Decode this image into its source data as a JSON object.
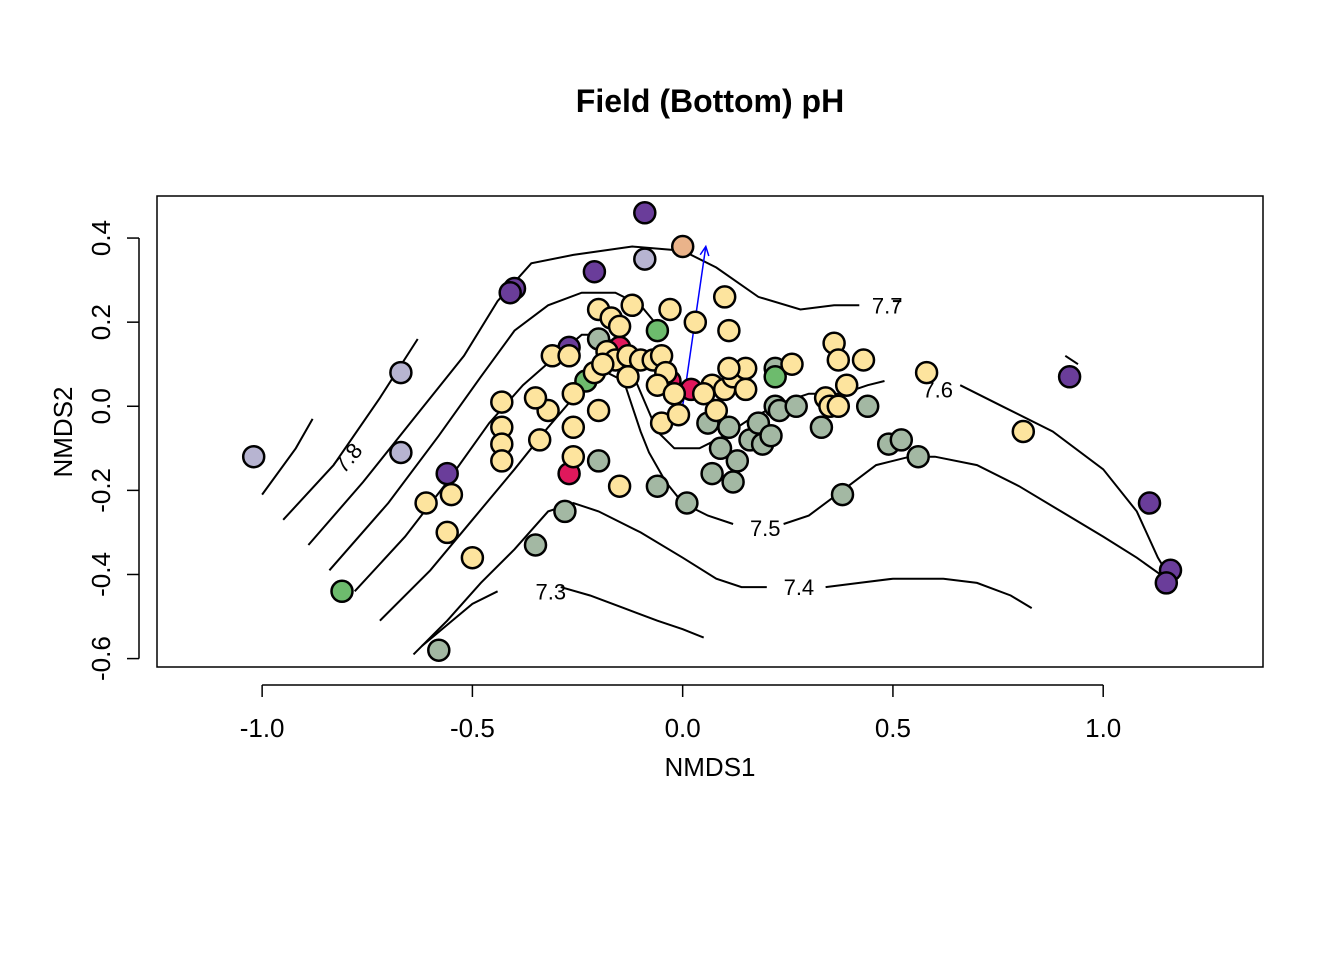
{
  "chart_data": {
    "type": "scatter",
    "title": "Field (Bottom) pH",
    "xlabel": "NMDS1",
    "ylabel": "NMDS2",
    "xlim": [
      -1.25,
      1.38
    ],
    "ylim": [
      -0.62,
      0.5
    ],
    "x_ticks": [
      "-1.0",
      "-0.5",
      "0.0",
      "0.5",
      "1.0"
    ],
    "x_tick_values": [
      -1.0,
      -0.5,
      0.0,
      0.5,
      1.0
    ],
    "y_ticks": [
      "-0.6",
      "-0.4",
      "-0.2",
      "0.0",
      "0.2",
      "0.4"
    ],
    "y_tick_values": [
      -0.6,
      -0.4,
      -0.2,
      0.0,
      0.2,
      0.4
    ],
    "grid": false,
    "colors": {
      "purple": "#6a3d9a",
      "lavender": "#b7b4d1",
      "yellow": "#fde49e",
      "sage": "#a3b8a3",
      "green": "#6dbb6d",
      "magenta": "#e0185c",
      "peach": "#eab38a"
    },
    "vector_arrow": {
      "x0": 0.0,
      "y0": 0.0,
      "x1": 0.055,
      "y1": 0.38,
      "color": "#0000ff"
    },
    "contours": [
      {
        "label": "7.8",
        "label_at": [
          -0.82,
          -0.15
        ],
        "points": [
          [
            -1.0,
            -0.21
          ],
          [
            -0.92,
            -0.1
          ],
          [
            -0.88,
            -0.03
          ]
        ]
      },
      {
        "label": "",
        "label_at": null,
        "points": [
          [
            -0.95,
            -0.27
          ],
          [
            -0.83,
            -0.14
          ],
          [
            -0.72,
            0.02
          ],
          [
            -0.63,
            0.16
          ]
        ]
      },
      {
        "label": "",
        "label_at": null,
        "points": [
          [
            -0.89,
            -0.33
          ],
          [
            -0.76,
            -0.18
          ],
          [
            -0.64,
            -0.03
          ],
          [
            -0.52,
            0.12
          ],
          [
            -0.44,
            0.25
          ],
          [
            -0.36,
            0.34
          ],
          [
            -0.26,
            0.36
          ],
          [
            -0.12,
            0.38
          ],
          [
            0.0,
            0.37
          ],
          [
            0.08,
            0.33
          ],
          [
            0.18,
            0.26
          ],
          [
            0.28,
            0.23
          ],
          [
            0.36,
            0.24
          ],
          [
            0.42,
            0.24
          ]
        ]
      },
      {
        "label": "7.7",
        "label_at": [
          0.45,
          0.24
        ],
        "points": [
          [
            0.5,
            0.25
          ],
          [
            0.52,
            0.25
          ]
        ]
      },
      {
        "label": "",
        "label_at": null,
        "points": [
          [
            -0.84,
            -0.39
          ],
          [
            -0.7,
            -0.23
          ],
          [
            -0.58,
            -0.07
          ],
          [
            -0.48,
            0.07
          ],
          [
            -0.4,
            0.18
          ],
          [
            -0.32,
            0.24
          ],
          [
            -0.24,
            0.27
          ],
          [
            -0.16,
            0.27
          ],
          [
            -0.1,
            0.24
          ],
          [
            -0.05,
            0.18
          ]
        ]
      },
      {
        "label": "",
        "label_at": null,
        "points": [
          [
            -0.78,
            -0.44
          ],
          [
            -0.66,
            -0.31
          ],
          [
            -0.56,
            -0.18
          ],
          [
            -0.46,
            -0.04
          ],
          [
            -0.38,
            0.05
          ],
          [
            -0.3,
            0.12
          ],
          [
            -0.24,
            0.17
          ],
          [
            -0.19,
            0.17
          ],
          [
            -0.15,
            0.14
          ],
          [
            -0.12,
            0.08
          ],
          [
            -0.09,
            0.01
          ],
          [
            -0.06,
            -0.06
          ],
          [
            -0.02,
            -0.1
          ],
          [
            0.04,
            -0.1
          ],
          [
            0.1,
            -0.07
          ],
          [
            0.16,
            -0.03
          ],
          [
            0.24,
            0.01
          ],
          [
            0.3,
            0.03
          ],
          [
            0.38,
            0.03
          ],
          [
            0.44,
            0.05
          ],
          [
            0.48,
            0.06
          ]
        ]
      },
      {
        "label": "7.6",
        "label_at": [
          0.57,
          0.04
        ],
        "points": [
          [
            0.66,
            0.05
          ],
          [
            0.76,
            0.0
          ],
          [
            0.88,
            -0.06
          ],
          [
            1.0,
            -0.15
          ],
          [
            1.08,
            -0.25
          ],
          [
            1.13,
            -0.36
          ],
          [
            1.16,
            -0.41
          ]
        ]
      },
      {
        "label": "",
        "label_at": null,
        "points": [
          [
            -0.72,
            -0.51
          ],
          [
            -0.6,
            -0.39
          ],
          [
            -0.5,
            -0.27
          ],
          [
            -0.4,
            -0.15
          ],
          [
            -0.32,
            -0.05
          ],
          [
            -0.26,
            0.02
          ],
          [
            -0.22,
            0.07
          ],
          [
            -0.18,
            0.08
          ],
          [
            -0.14,
            0.06
          ],
          [
            -0.12,
            0.0
          ],
          [
            -0.1,
            -0.06
          ],
          [
            -0.08,
            -0.11
          ],
          [
            -0.04,
            -0.18
          ],
          [
            0.0,
            -0.23
          ],
          [
            0.06,
            -0.26
          ],
          [
            0.12,
            -0.28
          ]
        ]
      },
      {
        "label": "7.5",
        "label_at": [
          0.16,
          -0.29
        ],
        "points": [
          [
            0.24,
            -0.28
          ],
          [
            0.3,
            -0.26
          ],
          [
            0.38,
            -0.2
          ],
          [
            0.46,
            -0.14
          ],
          [
            0.54,
            -0.12
          ],
          [
            0.6,
            -0.12
          ],
          [
            0.7,
            -0.14
          ],
          [
            0.8,
            -0.19
          ],
          [
            0.9,
            -0.25
          ],
          [
            1.0,
            -0.31
          ],
          [
            1.08,
            -0.36
          ],
          [
            1.15,
            -0.41
          ]
        ]
      },
      {
        "label": "",
        "label_at": null,
        "points": [
          [
            -0.64,
            -0.59
          ],
          [
            -0.56,
            -0.51
          ],
          [
            -0.48,
            -0.42
          ],
          [
            -0.4,
            -0.34
          ],
          [
            -0.32,
            -0.25
          ],
          [
            -0.26,
            -0.23
          ],
          [
            -0.2,
            -0.25
          ],
          [
            -0.1,
            -0.3
          ],
          [
            0.0,
            -0.36
          ],
          [
            0.08,
            -0.41
          ],
          [
            0.14,
            -0.43
          ],
          [
            0.2,
            -0.43
          ]
        ]
      },
      {
        "label": "7.4",
        "label_at": [
          0.24,
          -0.43
        ],
        "points": [
          [
            0.34,
            -0.43
          ],
          [
            0.42,
            -0.42
          ],
          [
            0.5,
            -0.41
          ],
          [
            0.56,
            -0.41
          ],
          [
            0.62,
            -0.41
          ],
          [
            0.7,
            -0.42
          ],
          [
            0.78,
            -0.45
          ],
          [
            0.83,
            -0.48
          ]
        ]
      },
      {
        "label": "",
        "label_at": null,
        "points": [
          [
            -0.62,
            -0.57
          ],
          [
            -0.56,
            -0.52
          ],
          [
            -0.5,
            -0.47
          ],
          [
            -0.44,
            -0.44
          ]
        ]
      },
      {
        "label": "7.3",
        "label_at": [
          -0.35,
          -0.44
        ],
        "points": [
          [
            -0.29,
            -0.43
          ],
          [
            -0.22,
            -0.45
          ],
          [
            -0.14,
            -0.48
          ],
          [
            -0.06,
            -0.51
          ],
          [
            0.0,
            -0.53
          ],
          [
            0.05,
            -0.55
          ]
        ]
      },
      {
        "label": "",
        "label_at": null,
        "points": [
          [
            0.91,
            0.12
          ],
          [
            0.94,
            0.1
          ]
        ]
      }
    ],
    "series": [
      {
        "color_key": "purple",
        "points": [
          [
            -0.09,
            0.46
          ],
          [
            -0.21,
            0.32
          ],
          [
            -0.4,
            0.28
          ],
          [
            -0.41,
            0.27
          ],
          [
            -0.27,
            0.14
          ],
          [
            -0.56,
            -0.16
          ],
          [
            0.92,
            0.07
          ],
          [
            1.11,
            -0.23
          ],
          [
            1.16,
            -0.39
          ],
          [
            1.15,
            -0.42
          ]
        ]
      },
      {
        "color_key": "lavender",
        "points": [
          [
            -0.09,
            0.35
          ],
          [
            -0.67,
            0.08
          ],
          [
            -0.67,
            -0.11
          ],
          [
            -1.02,
            -0.12
          ]
        ]
      },
      {
        "color_key": "peach",
        "points": [
          [
            0.0,
            0.38
          ]
        ]
      },
      {
        "color_key": "green",
        "points": [
          [
            -0.06,
            0.18
          ],
          [
            -0.23,
            0.06
          ],
          [
            0.22,
            0.07
          ],
          [
            -0.81,
            -0.44
          ]
        ]
      },
      {
        "color_key": "magenta",
        "points": [
          [
            -0.15,
            0.14
          ],
          [
            -0.03,
            0.06
          ],
          [
            0.02,
            0.04
          ],
          [
            -0.27,
            -0.16
          ]
        ]
      },
      {
        "color_key": "sage",
        "points": [
          [
            -0.2,
            0.16
          ],
          [
            0.22,
            0.09
          ],
          [
            0.06,
            -0.04
          ],
          [
            0.09,
            -0.1
          ],
          [
            0.11,
            -0.05
          ],
          [
            0.13,
            -0.13
          ],
          [
            0.16,
            -0.08
          ],
          [
            0.18,
            -0.04
          ],
          [
            0.19,
            -0.09
          ],
          [
            0.21,
            -0.07
          ],
          [
            0.22,
            0.0
          ],
          [
            0.23,
            -0.01
          ],
          [
            0.27,
            0.0
          ],
          [
            0.33,
            -0.05
          ],
          [
            0.44,
            0.0
          ],
          [
            0.49,
            -0.09
          ],
          [
            0.52,
            -0.08
          ],
          [
            0.56,
            -0.12
          ],
          [
            0.38,
            -0.21
          ],
          [
            0.07,
            -0.16
          ],
          [
            0.12,
            -0.18
          ],
          [
            -0.06,
            -0.19
          ],
          [
            0.01,
            -0.23
          ],
          [
            -0.2,
            -0.13
          ],
          [
            -0.28,
            -0.25
          ],
          [
            -0.35,
            -0.33
          ],
          [
            -0.58,
            -0.58
          ]
        ]
      },
      {
        "color_key": "yellow",
        "points": [
          [
            -0.2,
            0.23
          ],
          [
            -0.17,
            0.21
          ],
          [
            -0.15,
            0.19
          ],
          [
            -0.12,
            0.24
          ],
          [
            -0.03,
            0.23
          ],
          [
            0.03,
            0.2
          ],
          [
            0.1,
            0.26
          ],
          [
            0.11,
            0.18
          ],
          [
            -0.18,
            0.13
          ],
          [
            -0.16,
            0.11
          ],
          [
            -0.13,
            0.12
          ],
          [
            -0.1,
            0.11
          ],
          [
            -0.07,
            0.11
          ],
          [
            -0.05,
            0.12
          ],
          [
            -0.04,
            0.08
          ],
          [
            -0.06,
            0.05
          ],
          [
            -0.02,
            0.03
          ],
          [
            0.07,
            0.05
          ],
          [
            0.1,
            0.04
          ],
          [
            0.12,
            0.07
          ],
          [
            0.15,
            0.09
          ],
          [
            0.15,
            0.04
          ],
          [
            0.11,
            0.09
          ],
          [
            0.26,
            0.1
          ],
          [
            0.36,
            0.15
          ],
          [
            0.37,
            0.11
          ],
          [
            0.43,
            0.11
          ],
          [
            0.39,
            0.05
          ],
          [
            0.58,
            0.08
          ],
          [
            0.81,
            -0.06
          ],
          [
            0.34,
            0.02
          ],
          [
            0.35,
            0.0
          ],
          [
            0.37,
            0.0
          ],
          [
            -0.31,
            0.12
          ],
          [
            -0.27,
            0.12
          ],
          [
            -0.26,
            0.03
          ],
          [
            -0.21,
            0.08
          ],
          [
            -0.19,
            0.1
          ],
          [
            -0.13,
            0.07
          ],
          [
            -0.2,
            -0.01
          ],
          [
            -0.32,
            -0.01
          ],
          [
            -0.35,
            0.02
          ],
          [
            -0.43,
            0.01
          ],
          [
            -0.43,
            -0.05
          ],
          [
            -0.43,
            -0.09
          ],
          [
            -0.34,
            -0.08
          ],
          [
            -0.26,
            -0.05
          ],
          [
            -0.26,
            -0.12
          ],
          [
            -0.43,
            -0.13
          ],
          [
            -0.15,
            -0.19
          ],
          [
            -0.05,
            -0.04
          ],
          [
            -0.01,
            -0.02
          ],
          [
            0.05,
            0.03
          ],
          [
            0.08,
            -0.01
          ],
          [
            -0.55,
            -0.21
          ],
          [
            -0.61,
            -0.23
          ],
          [
            -0.56,
            -0.3
          ],
          [
            -0.5,
            -0.36
          ]
        ]
      }
    ]
  }
}
